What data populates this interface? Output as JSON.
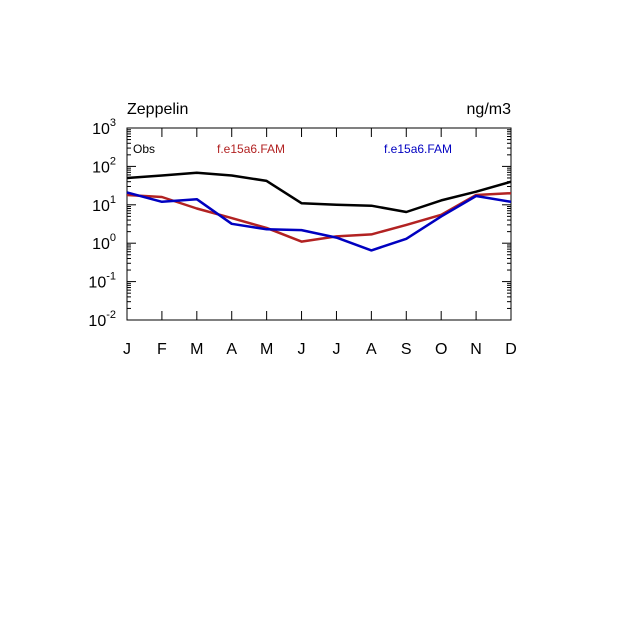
{
  "chart_data": {
    "type": "line",
    "title_left": "Zeppelin",
    "title_right": "ng/m3",
    "y_scale": "log",
    "ylim": [
      0.01,
      1000
    ],
    "y_ticks": [
      {
        "value": 0.01,
        "base": "10",
        "exp": "-2"
      },
      {
        "value": 0.1,
        "base": "10",
        "exp": "-1"
      },
      {
        "value": 1,
        "base": "10",
        "exp": "0"
      },
      {
        "value": 10,
        "base": "10",
        "exp": "1"
      },
      {
        "value": 100,
        "base": "10",
        "exp": "2"
      },
      {
        "value": 1000,
        "base": "10",
        "exp": "3"
      }
    ],
    "categories": [
      "J",
      "F",
      "M",
      "A",
      "M",
      "J",
      "J",
      "A",
      "S",
      "O",
      "N",
      "D"
    ],
    "grid": false,
    "series": [
      {
        "name": "Obs",
        "color": "#000000",
        "values": [
          50,
          58,
          68,
          58,
          42,
          11,
          10,
          9.5,
          6.5,
          13,
          22,
          40
        ]
      },
      {
        "name": "f.e15a6.FAM",
        "color": "#b22222",
        "values": [
          18,
          16,
          8,
          4.5,
          2.5,
          1.1,
          1.5,
          1.7,
          3,
          5.5,
          18,
          20
        ]
      },
      {
        "name": "f.e15a6.FAM",
        "color": "#0000c0",
        "values": [
          21,
          12,
          14,
          3.2,
          2.3,
          2.2,
          1.4,
          0.65,
          1.3,
          5,
          17,
          12
        ]
      }
    ]
  }
}
